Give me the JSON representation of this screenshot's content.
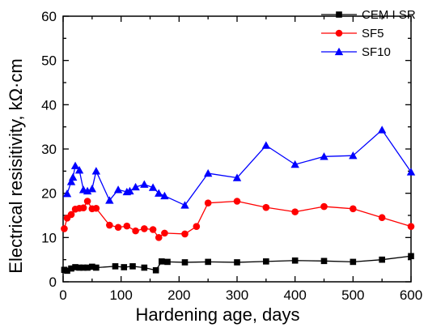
{
  "chart_data": {
    "type": "line",
    "title": "",
    "xlabel": "Hardening age, days",
    "ylabel": "Electrical resisitivity, kΩ·cm",
    "xlim": [
      0,
      600
    ],
    "ylim": [
      0,
      60
    ],
    "xticks": [
      0,
      100,
      200,
      300,
      400,
      500,
      600
    ],
    "yticks": [
      0,
      10,
      20,
      30,
      40,
      50,
      60
    ],
    "grid": false,
    "legend_position": "top-right",
    "series": [
      {
        "name": "CEM I SR",
        "color": "#000000",
        "marker": "square",
        "x": [
          2,
          7,
          14,
          21,
          28,
          35,
          42,
          50,
          57,
          90,
          105,
          120,
          140,
          160,
          170,
          180,
          210,
          250,
          300,
          350,
          400,
          450,
          500,
          550,
          600
        ],
        "y": [
          2.7,
          2.5,
          3.0,
          3.3,
          3.2,
          3.2,
          3.2,
          3.4,
          3.2,
          3.5,
          3.3,
          3.5,
          3.2,
          2.6,
          4.6,
          4.5,
          4.4,
          4.5,
          4.4,
          4.6,
          4.8,
          4.7,
          4.5,
          5.0,
          5.8
        ]
      },
      {
        "name": "SF5",
        "color": "#ff0000",
        "marker": "circle",
        "x": [
          2,
          7,
          14,
          21,
          28,
          35,
          42,
          50,
          57,
          80,
          95,
          110,
          125,
          140,
          155,
          165,
          175,
          210,
          230,
          250,
          300,
          350,
          400,
          450,
          500,
          550,
          600
        ],
        "y": [
          12.0,
          14.4,
          15.2,
          16.4,
          16.6,
          16.7,
          18.2,
          16.5,
          16.6,
          12.8,
          12.3,
          12.6,
          11.5,
          12.0,
          11.8,
          10.0,
          11.0,
          10.8,
          12.5,
          17.8,
          18.2,
          16.8,
          15.8,
          17.0,
          16.5,
          14.5,
          12.5
        ]
      },
      {
        "name": "SF10",
        "color": "#0000ff",
        "marker": "triangle",
        "x": [
          7,
          14,
          17,
          21,
          28,
          35,
          42,
          50,
          57,
          80,
          95,
          110,
          115,
          125,
          140,
          155,
          165,
          175,
          210,
          250,
          300,
          350,
          400,
          450,
          500,
          550,
          600
        ],
        "y": [
          19.9,
          22.6,
          23.6,
          26.2,
          25.2,
          20.8,
          20.5,
          21.0,
          25.0,
          18.4,
          20.8,
          20.3,
          20.5,
          21.4,
          22.0,
          21.3,
          20.0,
          19.4,
          17.3,
          24.5,
          23.5,
          30.8,
          26.5,
          28.3,
          28.5,
          34.3,
          24.8
        ]
      }
    ]
  }
}
